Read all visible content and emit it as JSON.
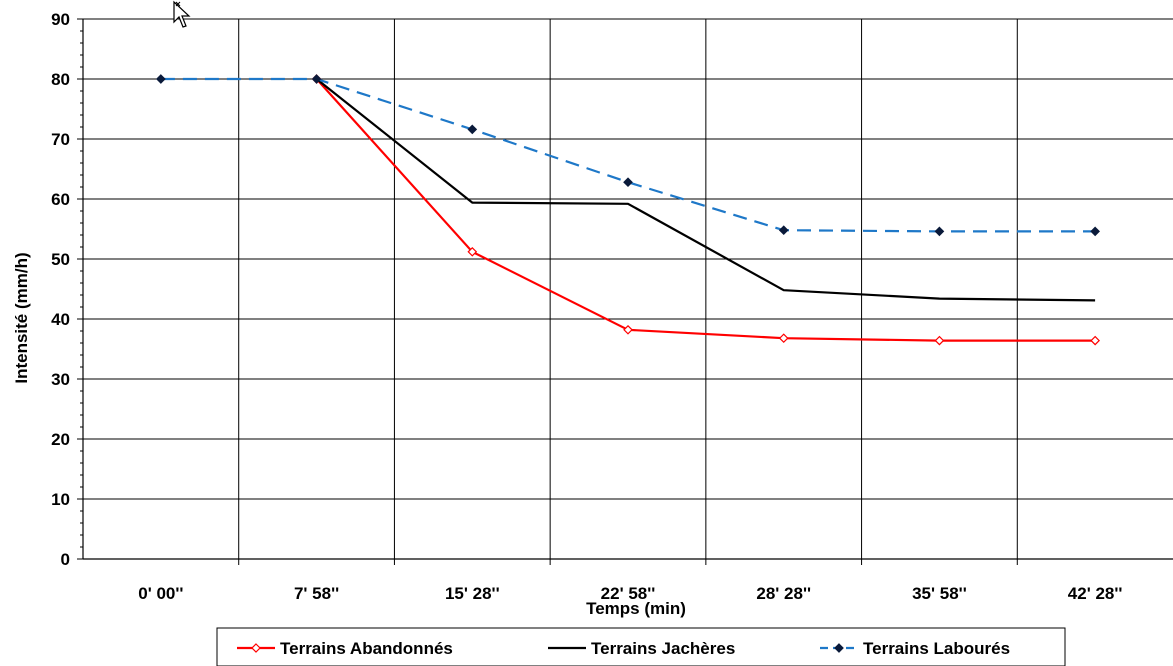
{
  "chart_data": {
    "type": "line",
    "title": "",
    "xlabel": "Temps (min)",
    "ylabel": "Intensité (mm/h)",
    "categories": [
      "0' 00''",
      "7' 58''",
      "15' 28''",
      "22' 58''",
      "28' 28''",
      "35' 58''",
      "42' 28''"
    ],
    "ylim": [
      0,
      90
    ],
    "yticks": [
      0,
      10,
      20,
      30,
      40,
      50,
      60,
      70,
      80,
      90
    ],
    "grid": true,
    "legend_position": "bottom",
    "series": [
      {
        "name": "Terrains Abandonnés",
        "values": [
          null,
          80,
          51.2,
          38.2,
          36.8,
          36.4,
          36.4
        ],
        "color": "#ff0000",
        "line_style": "solid",
        "marker": "open-diamond"
      },
      {
        "name": "Terrains Jachères",
        "values": [
          null,
          80,
          59.4,
          59.2,
          44.8,
          43.4,
          43.1
        ],
        "color": "#000000",
        "line_style": "solid",
        "marker": "none"
      },
      {
        "name": "Terrains Labourés",
        "values": [
          80,
          80,
          71.6,
          62.8,
          54.8,
          54.6,
          54.6
        ],
        "color": "#1e78c8",
        "line_style": "dashed",
        "marker": "filled-diamond",
        "marker_color": "#0a1a3a"
      }
    ]
  }
}
